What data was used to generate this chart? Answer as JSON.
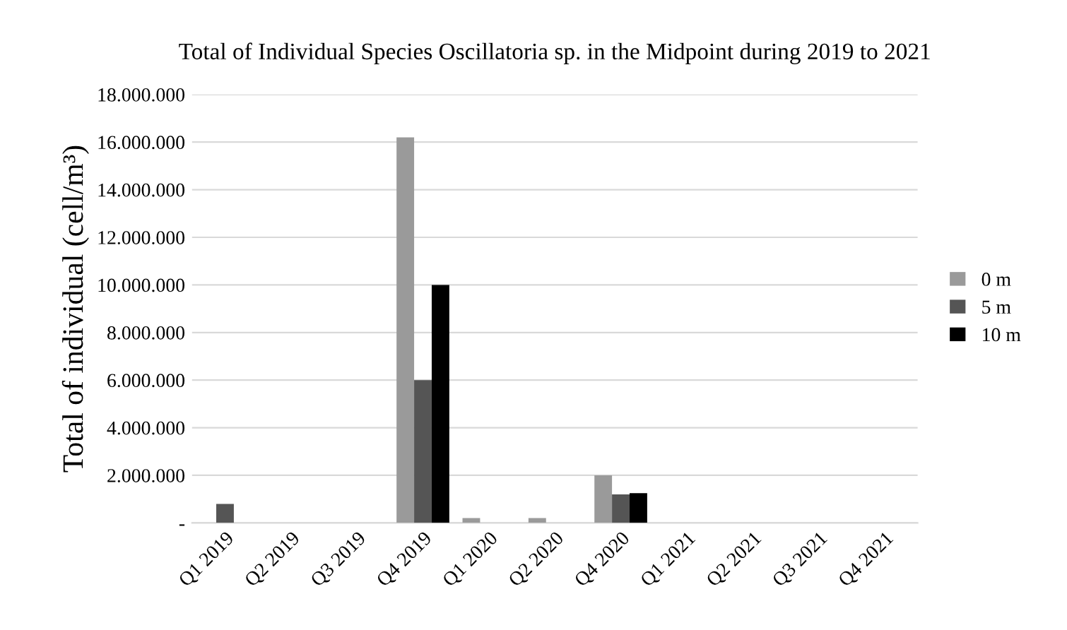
{
  "chart_data": {
    "type": "bar",
    "title": "Total of Individual Species Oscillatoria sp. in the Midpoint during 2019 to 2021",
    "ylabel": "Total of individual (cell/m³)",
    "categories": [
      "Q1 2019",
      "Q2 2019",
      "Q3 2019",
      "Q4 2019",
      "Q1 2020",
      "Q2 2020",
      "Q4 2020",
      "Q1 2021",
      "Q2 2021",
      "Q3 2021",
      "Q4 2021"
    ],
    "series": [
      {
        "name": "0 m",
        "color": "#9a9a9a",
        "values": [
          0,
          0,
          0,
          16200000,
          200000,
          200000,
          2000000,
          0,
          0,
          0,
          0
        ]
      },
      {
        "name": "5 m",
        "color": "#555555",
        "values": [
          800000,
          0,
          0,
          6000000,
          0,
          0,
          1200000,
          0,
          0,
          0,
          0
        ]
      },
      {
        "name": "10 m",
        "color": "#000000",
        "values": [
          0,
          0,
          0,
          10000000,
          0,
          0,
          1250000,
          0,
          0,
          0,
          0
        ]
      }
    ],
    "ylim": [
      0,
      18000000
    ],
    "yticks": [
      {
        "value": 0,
        "label": "-"
      },
      {
        "value": 2000000,
        "label": "2.000.000"
      },
      {
        "value": 4000000,
        "label": "4.000.000"
      },
      {
        "value": 6000000,
        "label": "6.000.000"
      },
      {
        "value": 8000000,
        "label": "8.000.000"
      },
      {
        "value": 10000000,
        "label": "10.000.000"
      },
      {
        "value": 12000000,
        "label": "12.000.000"
      },
      {
        "value": 14000000,
        "label": "14.000.000"
      },
      {
        "value": 16000000,
        "label": "16.000.000"
      },
      {
        "value": 18000000,
        "label": "18.000.000"
      }
    ],
    "grid": "y",
    "legend": "right"
  }
}
